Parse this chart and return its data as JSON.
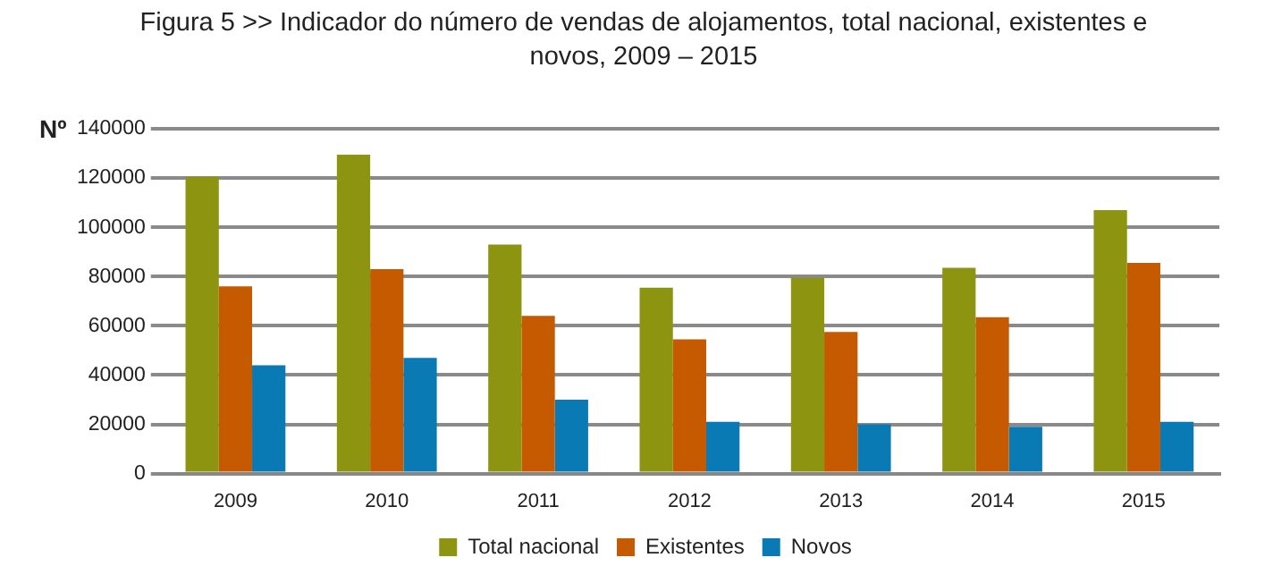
{
  "chart_data": {
    "type": "bar",
    "title": "Figura 5  >>  Indicador do número de vendas de alojamentos, total nacional, existentes e novos, 2009 – 2015",
    "ylabel": "Nº",
    "categories": [
      "2009",
      "2010",
      "2011",
      "2012",
      "2013",
      "2014",
      "2015"
    ],
    "series": [
      {
        "name": "Total nacional",
        "color": "#8c9410",
        "values": [
          120500,
          129500,
          93000,
          75500,
          79500,
          83500,
          107000
        ]
      },
      {
        "name": "Existentes",
        "color": "#c55a00",
        "values": [
          76000,
          83000,
          64000,
          54500,
          57500,
          63500,
          85500
        ]
      },
      {
        "name": "Novos",
        "color": "#0a7ab5",
        "values": [
          44000,
          47000,
          30000,
          21000,
          20000,
          19000,
          21000
        ]
      }
    ],
    "ylim": [
      0,
      140000
    ],
    "yticks": [
      0,
      20000,
      40000,
      60000,
      80000,
      100000,
      120000,
      140000
    ],
    "grid": "y",
    "legend": "bottom"
  }
}
